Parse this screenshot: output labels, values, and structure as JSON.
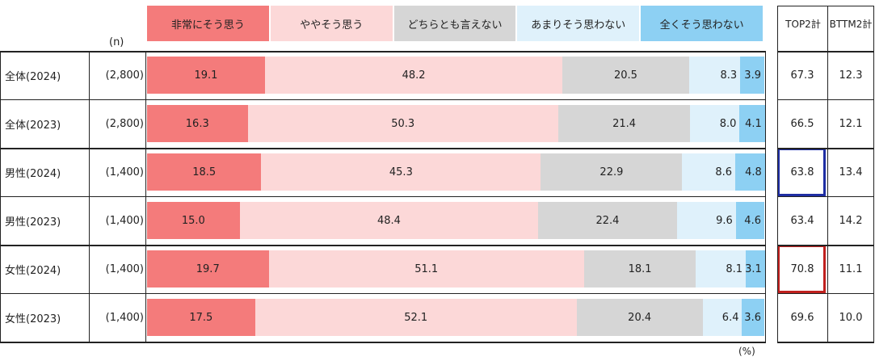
{
  "n_header": "(n)",
  "unit_label": "(%)",
  "legend": [
    {
      "label": "非常にそう思う",
      "color": "#f47b7b"
    },
    {
      "label": "ややそう思う",
      "color": "#fcd8d8"
    },
    {
      "label": "どちらとも言えない",
      "color": "#d6d6d6"
    },
    {
      "label": "あまりそう思わない",
      "color": "#dff1fb"
    },
    {
      "label": "全くそう思わない",
      "color": "#8dd0f3"
    }
  ],
  "summary_headers": {
    "top2": "TOP2計",
    "bttm2": "BTTM2計"
  },
  "highlight_colors": {
    "blue": "#1f2ea3",
    "red": "#c0201e"
  },
  "chart_data": {
    "type": "bar",
    "orientation": "horizontal-stacked-100",
    "categories": [
      "全体(2024)",
      "全体(2023)",
      "男性(2024)",
      "男性(2023)",
      "女性(2024)",
      "女性(2023)"
    ],
    "n": [
      "(2,800)",
      "(2,800)",
      "(1,400)",
      "(1,400)",
      "(1,400)",
      "(1,400)"
    ],
    "series": [
      {
        "name": "非常にそう思う",
        "values": [
          19.1,
          16.3,
          18.5,
          15.0,
          19.7,
          17.5
        ]
      },
      {
        "name": "ややそう思う",
        "values": [
          48.2,
          50.3,
          45.3,
          48.4,
          51.1,
          52.1
        ]
      },
      {
        "name": "どちらとも言えない",
        "values": [
          20.5,
          21.4,
          22.9,
          22.4,
          18.1,
          20.4
        ]
      },
      {
        "name": "あまりそう思わない",
        "values": [
          8.3,
          8.0,
          8.6,
          9.6,
          8.1,
          6.4
        ]
      },
      {
        "name": "全くそう思わない",
        "values": [
          3.9,
          4.1,
          4.8,
          4.6,
          3.1,
          3.6
        ]
      }
    ],
    "top2": [
      67.3,
      66.5,
      63.8,
      63.4,
      70.8,
      69.6
    ],
    "bttm2": [
      12.3,
      12.1,
      13.4,
      14.2,
      11.1,
      10.0
    ],
    "highlighted_top2": [
      {
        "row": 2,
        "color": "blue"
      },
      {
        "row": 4,
        "color": "red"
      }
    ]
  }
}
